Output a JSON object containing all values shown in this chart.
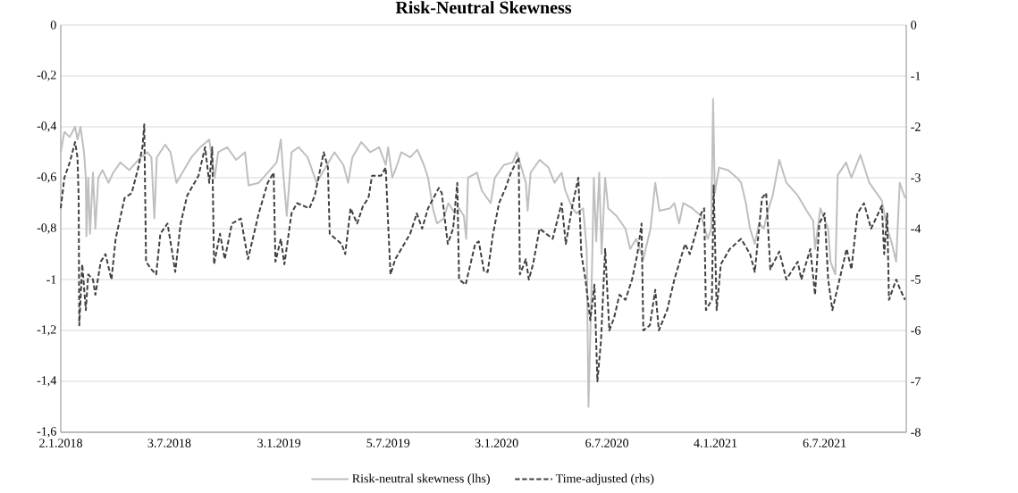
{
  "chart_data": {
    "type": "line",
    "title": "Risk-Neutral Skewness",
    "xlim": [
      "2018-01-02",
      "2021-11-20"
    ],
    "xticks": [
      {
        "value": "2018-01-02",
        "label": "2.1.2018"
      },
      {
        "value": "2018-07-03",
        "label": "3.7.2018"
      },
      {
        "value": "2019-01-03",
        "label": "3.1.2019"
      },
      {
        "value": "2019-07-05",
        "label": "5.7.2019"
      },
      {
        "value": "2020-01-03",
        "label": "3.1.2020"
      },
      {
        "value": "2020-07-06",
        "label": "6.7.2020"
      },
      {
        "value": "2021-01-04",
        "label": "4.1.2021"
      },
      {
        "value": "2021-07-06",
        "label": "6.7.2021"
      }
    ],
    "ylim": [
      -1.6,
      0
    ],
    "yticks": [
      {
        "value": -1.6,
        "label": "-1,6"
      },
      {
        "value": -1.4,
        "label": "-1,4"
      },
      {
        "value": -1.2,
        "label": "-1,2"
      },
      -1,
      {
        "value": -0.8,
        "label": "-0,8"
      },
      {
        "value": -0.6,
        "label": "-0,6"
      },
      {
        "value": -0.4,
        "label": "-0,4"
      },
      {
        "value": -0.2,
        "label": "-0,2"
      },
      0
    ],
    "y2lim": [
      -8,
      0
    ],
    "y2ticks": [
      -8,
      -7,
      -6,
      -5,
      -4,
      -3,
      -2,
      -1,
      0
    ],
    "grid": "y",
    "legend": "bottom",
    "series": [
      {
        "name": "Risk-neutral skewness (lhs)",
        "color": "#bfbfbf",
        "line_style": "solid",
        "axis": "y",
        "x": [
          "2018-01-02",
          "2018-01-08",
          "2018-01-17",
          "2018-01-26",
          "2018-01-30",
          "2018-02-04",
          "2018-02-10",
          "2018-02-13",
          "2018-02-14",
          "2018-02-17",
          "2018-02-20",
          "2018-02-25",
          "2018-03-01",
          "2018-03-06",
          "2018-03-13",
          "2018-03-23",
          "2018-03-31",
          "2018-04-12",
          "2018-04-27",
          "2018-05-16",
          "2018-05-27",
          "2018-06-03",
          "2018-06-08",
          "2018-06-12",
          "2018-06-26",
          "2018-07-05",
          "2018-07-15",
          "2018-07-25",
          "2018-08-09",
          "2018-08-24",
          "2018-09-08",
          "2018-09-17",
          "2018-09-23",
          "2018-10-08",
          "2018-10-23",
          "2018-11-07",
          "2018-11-13",
          "2018-11-30",
          "2018-12-15",
          "2018-12-30",
          "2019-01-06",
          "2019-01-10",
          "2019-01-16",
          "2019-01-24",
          "2019-02-05",
          "2019-02-20",
          "2019-03-07",
          "2019-03-22",
          "2019-04-06",
          "2019-04-21",
          "2019-04-29",
          "2019-05-06",
          "2019-05-21",
          "2019-06-05",
          "2019-06-20",
          "2019-07-01",
          "2019-07-05",
          "2019-07-12",
          "2019-07-20",
          "2019-07-27",
          "2019-08-11",
          "2019-08-23",
          "2019-09-03",
          "2019-09-10",
          "2019-09-18",
          "2019-09-25",
          "2019-10-06",
          "2019-10-14",
          "2019-10-25",
          "2019-11-01",
          "2019-11-09",
          "2019-11-13",
          "2019-11-16",
          "2019-12-01",
          "2019-12-09",
          "2019-12-24",
          "2019-12-31",
          "2020-01-15",
          "2020-01-30",
          "2020-02-06",
          "2020-02-21",
          "2020-02-24",
          "2020-02-29",
          "2020-03-15",
          "2020-03-30",
          "2020-04-09",
          "2020-04-21",
          "2020-04-27",
          "2020-05-09",
          "2020-05-16",
          "2020-05-27",
          "2020-06-02",
          "2020-06-05",
          "2020-06-11",
          "2020-06-14",
          "2020-06-18",
          "2020-06-23",
          "2020-06-27",
          "2020-07-03",
          "2020-07-08",
          "2020-07-22",
          "2020-08-06",
          "2020-08-14",
          "2020-08-24",
          "2020-09-05",
          "2020-09-17",
          "2020-09-25",
          "2020-10-02",
          "2020-10-20",
          "2020-10-27",
          "2020-11-04",
          "2020-11-11",
          "2020-11-26",
          "2020-12-11",
          "2020-12-22",
          "2020-12-28",
          "2020-12-31",
          "2021-01-03",
          "2021-01-10",
          "2021-01-25",
          "2021-02-09",
          "2021-02-16",
          "2021-02-24",
          "2021-03-03",
          "2021-03-11",
          "2021-03-18",
          "2021-03-26",
          "2021-04-02",
          "2021-04-10",
          "2021-04-21",
          "2021-05-03",
          "2021-05-22",
          "2021-06-06",
          "2021-06-17",
          "2021-06-20",
          "2021-06-29",
          "2021-07-12",
          "2021-07-16",
          "2021-07-24",
          "2021-07-28",
          "2021-08-11",
          "2021-08-20",
          "2021-09-04",
          "2021-09-19",
          "2021-10-10",
          "2021-10-19",
          "2021-10-26",
          "2021-11-03",
          "2021-11-09",
          "2021-11-18"
        ],
        "values": [
          -0.5,
          -0.42,
          -0.44,
          -0.4,
          -0.45,
          -0.4,
          -0.5,
          -0.6,
          -0.83,
          -0.6,
          -0.82,
          -0.58,
          -0.8,
          -0.6,
          -0.57,
          -0.62,
          -0.58,
          -0.54,
          -0.57,
          -0.52,
          -0.5,
          -0.52,
          -0.76,
          -0.52,
          -0.47,
          -0.5,
          -0.62,
          -0.58,
          -0.52,
          -0.48,
          -0.45,
          -0.6,
          -0.5,
          -0.48,
          -0.53,
          -0.5,
          -0.63,
          -0.62,
          -0.58,
          -0.54,
          -0.45,
          -0.58,
          -0.75,
          -0.5,
          -0.48,
          -0.52,
          -0.62,
          -0.56,
          -0.5,
          -0.55,
          -0.62,
          -0.52,
          -0.46,
          -0.5,
          -0.48,
          -0.55,
          -0.48,
          -0.6,
          -0.55,
          -0.5,
          -0.52,
          -0.49,
          -0.55,
          -0.6,
          -0.72,
          -0.78,
          -0.76,
          -0.7,
          -0.74,
          -0.72,
          -0.75,
          -0.84,
          -0.6,
          -0.58,
          -0.65,
          -0.7,
          -0.6,
          -0.55,
          -0.54,
          -0.5,
          -0.62,
          -0.73,
          -0.58,
          -0.53,
          -0.56,
          -0.62,
          -0.58,
          -0.65,
          -0.72,
          -0.74,
          -0.72,
          -0.88,
          -1.5,
          -0.95,
          -0.6,
          -0.85,
          -0.58,
          -0.9,
          -0.6,
          -0.72,
          -0.75,
          -0.8,
          -0.88,
          -0.84,
          -0.92,
          -0.8,
          -0.62,
          -0.73,
          -0.72,
          -0.7,
          -0.78,
          -0.7,
          -0.72,
          -0.75,
          -0.84,
          -0.8,
          -0.29,
          -0.66,
          -0.56,
          -0.57,
          -0.6,
          -0.62,
          -0.7,
          -0.8,
          -0.86,
          -0.78,
          -0.8,
          -0.73,
          -0.67,
          -0.53,
          -0.62,
          -0.67,
          -0.73,
          -0.77,
          -0.88,
          -0.72,
          -0.8,
          -0.93,
          -0.98,
          -0.59,
          -0.54,
          -0.6,
          -0.51,
          -0.62,
          -0.69,
          -0.8,
          -0.85,
          -0.93,
          -0.62,
          -0.68
        ]
      },
      {
        "name": "Time-adjusted (rhs)",
        "color": "#404040",
        "line_style": "dashed",
        "axis": "y2",
        "x": [
          "2018-01-02",
          "2018-01-08",
          "2018-01-17",
          "2018-01-26",
          "2018-01-30",
          "2018-02-01",
          "2018-02-02",
          "2018-02-07",
          "2018-02-13",
          "2018-02-17",
          "2018-02-25",
          "2018-03-01",
          "2018-03-10",
          "2018-03-18",
          "2018-03-28",
          "2018-04-04",
          "2018-04-19",
          "2018-05-01",
          "2018-05-12",
          "2018-05-19",
          "2018-05-22",
          "2018-05-25",
          "2018-06-03",
          "2018-06-11",
          "2018-06-18",
          "2018-06-30",
          "2018-07-07",
          "2018-07-13",
          "2018-07-22",
          "2018-08-02",
          "2018-08-21",
          "2018-09-01",
          "2018-09-08",
          "2018-09-13",
          "2018-09-16",
          "2018-09-26",
          "2018-10-04",
          "2018-10-16",
          "2018-10-31",
          "2018-11-12",
          "2018-11-30",
          "2018-12-15",
          "2018-12-25",
          "2018-12-28",
          "2019-01-06",
          "2019-01-12",
          "2019-01-24",
          "2019-02-02",
          "2019-02-23",
          "2019-03-04",
          "2019-03-19",
          "2019-03-26",
          "2019-03-29",
          "2019-04-18",
          "2019-04-24",
          "2019-05-03",
          "2019-05-14",
          "2019-05-24",
          "2019-06-02",
          "2019-06-08",
          "2019-06-23",
          "2019-07-01",
          "2019-07-05",
          "2019-07-09",
          "2019-07-17",
          "2019-08-11",
          "2019-08-22",
          "2019-08-31",
          "2019-09-10",
          "2019-09-28",
          "2019-10-03",
          "2019-10-13",
          "2019-10-22",
          "2019-10-29",
          "2019-11-01",
          "2019-11-12",
          "2019-11-28",
          "2019-12-04",
          "2019-12-13",
          "2019-12-19",
          "2019-12-28",
          "2020-01-07",
          "2020-01-18",
          "2020-01-27",
          "2020-02-09",
          "2020-02-11",
          "2020-02-21",
          "2020-02-26",
          "2020-03-04",
          "2020-03-15",
          "2020-04-06",
          "2020-04-21",
          "2020-04-28",
          "2020-05-09",
          "2020-05-19",
          "2020-05-24",
          "2020-05-31",
          "2020-06-08",
          "2020-06-15",
          "2020-06-20",
          "2020-06-26",
          "2020-07-03",
          "2020-07-10",
          "2020-07-18",
          "2020-07-27",
          "2020-08-06",
          "2020-08-17",
          "2020-08-26",
          "2020-09-02",
          "2020-09-05",
          "2020-09-16",
          "2020-09-25",
          "2020-10-01",
          "2020-10-15",
          "2020-10-27",
          "2020-11-14",
          "2020-11-22",
          "2020-12-04",
          "2020-12-11",
          "2020-12-16",
          "2020-12-19",
          "2020-12-29",
          "2021-01-01",
          "2021-01-06",
          "2021-01-13",
          "2021-01-28",
          "2021-02-16",
          "2021-03-03",
          "2021-03-11",
          "2021-03-23",
          "2021-03-30",
          "2021-04-06",
          "2021-04-21",
          "2021-05-03",
          "2021-05-22",
          "2021-05-28",
          "2021-06-12",
          "2021-06-20",
          "2021-06-27",
          "2021-07-06",
          "2021-07-12",
          "2021-07-19",
          "2021-07-31",
          "2021-08-12",
          "2021-08-20",
          "2021-08-30",
          "2021-09-10",
          "2021-09-22",
          "2021-10-10",
          "2021-10-14",
          "2021-10-19",
          "2021-10-22",
          "2021-11-03",
          "2021-11-10",
          "2021-11-18"
        ],
        "values": [
          -3.6,
          -3.0,
          -2.7,
          -2.3,
          -2.6,
          -3.4,
          -5.9,
          -4.7,
          -5.6,
          -4.9,
          -5.0,
          -5.3,
          -4.65,
          -4.5,
          -5.0,
          -4.2,
          -3.4,
          -3.3,
          -2.8,
          -2.4,
          -1.95,
          -4.65,
          -4.8,
          -4.9,
          -4.1,
          -3.9,
          -4.4,
          -4.85,
          -3.9,
          -3.35,
          -2.96,
          -2.4,
          -3.1,
          -2.4,
          -4.7,
          -4.1,
          -4.6,
          -3.9,
          -3.8,
          -4.6,
          -3.7,
          -3.1,
          -2.9,
          -4.65,
          -4.2,
          -4.7,
          -3.7,
          -3.5,
          -3.6,
          -3.35,
          -2.5,
          -2.8,
          -4.1,
          -4.3,
          -4.5,
          -3.6,
          -3.9,
          -3.55,
          -3.4,
          -2.96,
          -2.96,
          -2.8,
          -3.9,
          -4.9,
          -4.6,
          -4.1,
          -3.7,
          -4.0,
          -3.6,
          -3.2,
          -3.3,
          -4.3,
          -4.0,
          -3.1,
          -5.0,
          -5.1,
          -4.3,
          -4.25,
          -4.85,
          -4.85,
          -4.1,
          -3.5,
          -3.2,
          -2.9,
          -2.6,
          -4.9,
          -4.6,
          -5.0,
          -4.7,
          -4.0,
          -4.2,
          -3.5,
          -4.3,
          -3.55,
          -3.0,
          -4.5,
          -5.0,
          -5.8,
          -5.1,
          -7.0,
          -6.2,
          -4.4,
          -6.0,
          -5.75,
          -5.3,
          -5.4,
          -5.0,
          -4.5,
          -3.9,
          -6.0,
          -5.9,
          -5.2,
          -6.0,
          -5.6,
          -5.0,
          -4.3,
          -4.5,
          -4.0,
          -3.7,
          -3.6,
          -5.6,
          -5.4,
          -3.15,
          -5.6,
          -4.7,
          -4.4,
          -4.2,
          -4.5,
          -4.85,
          -3.4,
          -3.3,
          -4.8,
          -4.45,
          -5.0,
          -4.65,
          -5.0,
          -4.4,
          -5.3,
          -3.9,
          -3.7,
          -5.0,
          -5.6,
          -5.0,
          -4.4,
          -4.8,
          -3.7,
          -3.5,
          -4.0,
          -3.55,
          -4.5,
          -3.7,
          -5.4,
          -5.0,
          -5.2,
          -5.4
        ]
      }
    ]
  }
}
